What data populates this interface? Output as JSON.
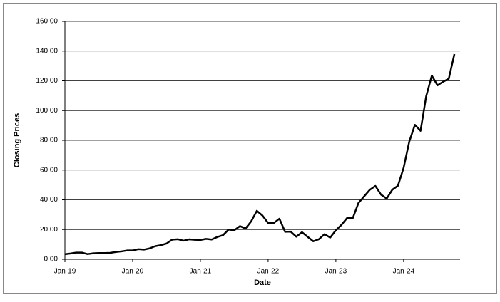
{
  "chart_data": {
    "type": "line",
    "x_label": "Date",
    "y_label": "Closing Prices",
    "x": [
      "2019-01",
      "2019-02",
      "2019-03",
      "2019-04",
      "2019-05",
      "2019-06",
      "2019-07",
      "2019-08",
      "2019-09",
      "2019-10",
      "2019-11",
      "2019-12",
      "2020-01",
      "2020-02",
      "2020-03",
      "2020-04",
      "2020-05",
      "2020-06",
      "2020-07",
      "2020-08",
      "2020-09",
      "2020-10",
      "2020-11",
      "2020-12",
      "2021-01",
      "2021-02",
      "2021-03",
      "2021-04",
      "2021-05",
      "2021-06",
      "2021-07",
      "2021-08",
      "2021-09",
      "2021-10",
      "2021-11",
      "2021-12",
      "2022-01",
      "2022-02",
      "2022-03",
      "2022-04",
      "2022-05",
      "2022-06",
      "2022-07",
      "2022-08",
      "2022-09",
      "2022-10",
      "2022-11",
      "2022-12",
      "2023-01",
      "2023-02",
      "2023-03",
      "2023-04",
      "2023-05",
      "2023-06",
      "2023-07",
      "2023-08",
      "2023-09",
      "2023-10",
      "2023-11",
      "2023-12",
      "2024-01",
      "2024-02",
      "2024-03",
      "2024-04",
      "2024-05",
      "2024-06",
      "2024-07",
      "2024-08",
      "2024-09",
      "2024-10"
    ],
    "series": [
      {
        "name": "Closing Prices",
        "color": "#000000",
        "values": [
          3.4,
          3.9,
          4.5,
          4.5,
          3.5,
          4.0,
          4.2,
          4.2,
          4.3,
          4.9,
          5.3,
          5.9,
          5.9,
          6.8,
          6.5,
          7.3,
          8.8,
          9.5,
          10.6,
          13.2,
          13.5,
          12.5,
          13.4,
          13.1,
          13.0,
          13.7,
          13.3,
          15.0,
          16.2,
          20.0,
          19.5,
          22.3,
          20.7,
          25.5,
          32.6,
          29.4,
          24.4,
          24.4,
          27.3,
          18.5,
          18.6,
          15.2,
          18.2,
          15.1,
          12.1,
          13.5,
          16.9,
          14.6,
          19.5,
          23.2,
          27.8,
          27.7,
          37.8,
          42.3,
          46.7,
          49.3,
          43.5,
          40.8,
          46.8,
          49.5,
          61.5,
          79.1,
          90.4,
          86.4,
          109.6,
          123.5,
          117.0,
          119.4,
          121.4,
          138.0
        ]
      }
    ],
    "xlim": [
      "2019-01",
      "2024-11"
    ],
    "xticks": [
      {
        "value": "2019-01",
        "label": "Jan-19"
      },
      {
        "value": "2020-01",
        "label": "Jan-20"
      },
      {
        "value": "2021-01",
        "label": "Jan-21"
      },
      {
        "value": "2022-01",
        "label": "Jan-22"
      },
      {
        "value": "2023-01",
        "label": "Jan-23"
      },
      {
        "value": "2024-01",
        "label": "Jan-24"
      }
    ],
    "ylim": [
      0,
      160
    ],
    "yticks": [
      {
        "value": 0,
        "label": "0.00"
      },
      {
        "value": 20,
        "label": "20.00"
      },
      {
        "value": 40,
        "label": "40.00"
      },
      {
        "value": 60,
        "label": "60.00"
      },
      {
        "value": 80,
        "label": "80.00"
      },
      {
        "value": 100,
        "label": "100.00"
      },
      {
        "value": 120,
        "label": "120.00"
      },
      {
        "value": 140,
        "label": "140.00"
      },
      {
        "value": 160,
        "label": "160.00"
      }
    ],
    "grid": true
  }
}
